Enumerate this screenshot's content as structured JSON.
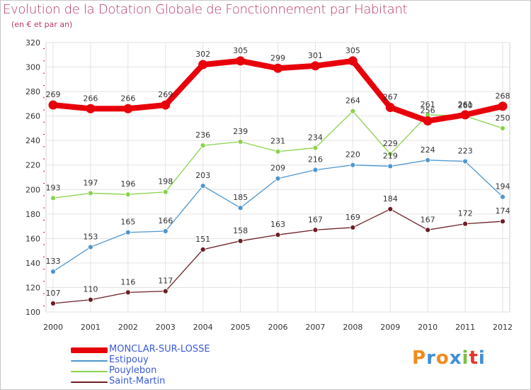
{
  "title": "Evolution de la Dotation Globale de Fonctionnement par Habitant",
  "subtitle": "(en € et par an)",
  "brand": {
    "letters": [
      "P",
      "r",
      "o",
      "x",
      "i",
      "t",
      "i"
    ],
    "colors": [
      "#f08a1c",
      "#3f8fd8",
      "#f08a1c",
      "#3f8fd8",
      "#7ac143",
      "#e2382c",
      "#3f8fd8"
    ]
  },
  "chart_data": {
    "type": "line",
    "title": "Evolution de la Dotation Globale de Fonctionnement par Habitant",
    "subtitle": "(en € et par an)",
    "xlabel": "",
    "ylabel": "",
    "ylim": [
      100,
      320
    ],
    "yticks": [
      100,
      120,
      140,
      160,
      180,
      200,
      220,
      240,
      260,
      280,
      300,
      320
    ],
    "grid": true,
    "legend": "bottom-left",
    "x": [
      "2000",
      "2001",
      "2002",
      "2003",
      "2004",
      "2005",
      "2006",
      "2007",
      "2008",
      "2009",
      "2010",
      "2011",
      "2012"
    ],
    "series": [
      {
        "name": "MONCLAR-SUR-LOSSE",
        "color": "#e8000b",
        "values": [
          269,
          266,
          266,
          269,
          302,
          305,
          299,
          301,
          305,
          267,
          256,
          261,
          268
        ]
      },
      {
        "name": "Estipouy",
        "color": "#4f96cf",
        "values": [
          133,
          153,
          165,
          166,
          203,
          185,
          209,
          216,
          220,
          219,
          224,
          223,
          194
        ]
      },
      {
        "name": "Pouylebon",
        "color": "#8ad24c",
        "values": [
          193,
          197,
          196,
          198,
          236,
          239,
          231,
          234,
          264,
          229,
          261,
          260,
          250
        ]
      },
      {
        "name": "Saint-Martin",
        "color": "#6b1f24",
        "values": [
          107,
          110,
          116,
          117,
          151,
          158,
          163,
          167,
          169,
          184,
          167,
          172,
          174
        ]
      }
    ]
  }
}
